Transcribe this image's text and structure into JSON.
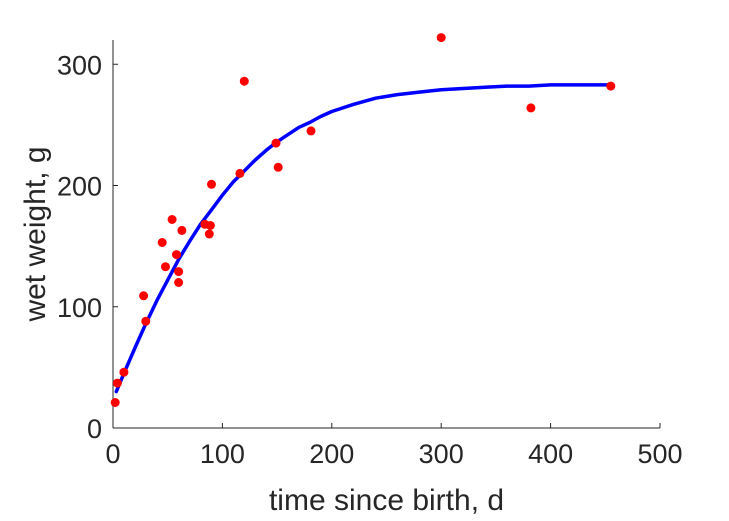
{
  "chart_data": {
    "type": "scatter",
    "xlabel": "time since birth, d",
    "ylabel": "wet weight, g",
    "xlim": [
      0,
      500
    ],
    "ylim": [
      0,
      320
    ],
    "xticks": [
      0,
      100,
      200,
      300,
      400,
      500
    ],
    "yticks": [
      0,
      100,
      200,
      300
    ],
    "grid": false,
    "colors": {
      "points": "#ff0000",
      "fit": "#0000ff",
      "axes": "#262626"
    },
    "series": [
      {
        "kind": "points",
        "x": [
          2,
          4,
          10,
          28,
          30,
          45,
          48,
          54,
          58,
          60,
          60,
          63,
          84,
          88,
          89,
          90,
          116,
          120,
          149,
          151,
          181,
          300,
          382,
          455
        ],
        "y": [
          21,
          37,
          46,
          109,
          88,
          153,
          133,
          172,
          143,
          129,
          120,
          163,
          168,
          160,
          167,
          201,
          210,
          286,
          235,
          215,
          245,
          322,
          264,
          282
        ]
      },
      {
        "kind": "line",
        "x": [
          3,
          10,
          20,
          30,
          40,
          50,
          60,
          70,
          80,
          90,
          100,
          110,
          120,
          130,
          140,
          150,
          160,
          170,
          180,
          190,
          200,
          220,
          240,
          260,
          280,
          300,
          320,
          340,
          360,
          380,
          400,
          420,
          440,
          455
        ],
        "y": [
          30,
          45,
          66,
          86,
          105,
          122,
          139,
          154,
          168,
          180,
          192,
          203,
          212,
          221,
          229,
          236,
          242,
          248,
          252,
          257,
          261,
          267,
          272,
          275,
          277,
          279,
          280,
          281,
          282,
          282,
          283,
          283,
          283,
          283
        ]
      }
    ]
  }
}
